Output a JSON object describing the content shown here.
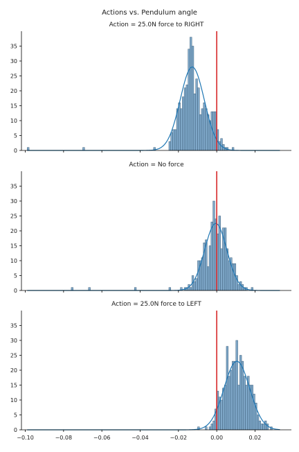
{
  "figure": {
    "suptitle": "Actions vs. Pendulum angle"
  },
  "colors": {
    "bar_fill": "#7fa8c9",
    "bar_edge": "#3d5f7a",
    "kde_line": "#1f77b4",
    "zero_line": "#d62728",
    "axis": "#000000"
  },
  "chart_data": [
    {
      "type": "bar",
      "title": "Action = 25.0N force to RIGHT",
      "xlabel": "",
      "ylabel": "",
      "xlim": [
        -0.102,
        0.039
      ],
      "ylim": [
        0,
        40
      ],
      "yticks": [
        0,
        5,
        10,
        15,
        20,
        25,
        30,
        35
      ],
      "vline_x": 0.0,
      "bin_width": 0.001,
      "bins": [
        [
          -0.099,
          1
        ],
        [
          -0.07,
          1
        ],
        [
          -0.033,
          1
        ],
        [
          -0.025,
          3
        ],
        [
          -0.024,
          6
        ],
        [
          -0.023,
          7
        ],
        [
          -0.022,
          7
        ],
        [
          -0.021,
          14
        ],
        [
          -0.02,
          16
        ],
        [
          -0.019,
          14
        ],
        [
          -0.018,
          18
        ],
        [
          -0.017,
          21
        ],
        [
          -0.016,
          22
        ],
        [
          -0.015,
          34
        ],
        [
          -0.014,
          38
        ],
        [
          -0.013,
          35
        ],
        [
          -0.012,
          19
        ],
        [
          -0.011,
          24
        ],
        [
          -0.01,
          21
        ],
        [
          -0.009,
          12
        ],
        [
          -0.008,
          14
        ],
        [
          -0.007,
          16
        ],
        [
          -0.006,
          14
        ],
        [
          -0.005,
          12
        ],
        [
          -0.004,
          10
        ],
        [
          -0.003,
          13
        ],
        [
          -0.002,
          13
        ],
        [
          -0.001,
          13
        ],
        [
          0.0,
          7
        ],
        [
          0.001,
          3
        ],
        [
          0.002,
          4
        ],
        [
          0.003,
          2
        ],
        [
          0.004,
          1
        ],
        [
          0.005,
          1
        ],
        [
          0.008,
          1
        ]
      ],
      "kde": {
        "mean": -0.0128,
        "std": 0.0063,
        "peak": 28
      }
    },
    {
      "type": "bar",
      "title": "Action = No force",
      "xlabel": "",
      "ylabel": "",
      "xlim": [
        -0.102,
        0.039
      ],
      "ylim": [
        0,
        40
      ],
      "yticks": [
        0,
        5,
        10,
        15,
        20,
        25,
        30,
        35
      ],
      "vline_x": 0.0,
      "bin_width": 0.001,
      "bins": [
        [
          -0.076,
          1
        ],
        [
          -0.067,
          1
        ],
        [
          -0.043,
          1
        ],
        [
          -0.025,
          1
        ],
        [
          -0.019,
          1
        ],
        [
          -0.017,
          1
        ],
        [
          -0.016,
          1
        ],
        [
          -0.015,
          2
        ],
        [
          -0.014,
          1
        ],
        [
          -0.013,
          5
        ],
        [
          -0.012,
          3
        ],
        [
          -0.011,
          4
        ],
        [
          -0.01,
          10
        ],
        [
          -0.009,
          10
        ],
        [
          -0.008,
          11
        ],
        [
          -0.007,
          16
        ],
        [
          -0.006,
          17
        ],
        [
          -0.005,
          8
        ],
        [
          -0.004,
          15
        ],
        [
          -0.003,
          23
        ],
        [
          -0.002,
          30
        ],
        [
          -0.001,
          24
        ],
        [
          0.0,
          19
        ],
        [
          0.001,
          25
        ],
        [
          0.002,
          14
        ],
        [
          0.003,
          21
        ],
        [
          0.004,
          21
        ],
        [
          0.005,
          14
        ],
        [
          0.006,
          10
        ],
        [
          0.007,
          11
        ],
        [
          0.008,
          9
        ],
        [
          0.009,
          9
        ],
        [
          0.01,
          5
        ],
        [
          0.011,
          2
        ],
        [
          0.012,
          3
        ],
        [
          0.013,
          2
        ],
        [
          0.014,
          1
        ],
        [
          0.015,
          1
        ],
        [
          0.018,
          1
        ]
      ],
      "kde": {
        "mean": -0.0005,
        "std": 0.0058,
        "peak": 22.5
      }
    },
    {
      "type": "bar",
      "title": "Action = 25.0N force to LEFT",
      "xlabel": "",
      "ylabel": "",
      "xlim": [
        -0.102,
        0.039
      ],
      "ylim": [
        0,
        40
      ],
      "xticks": [
        -0.1,
        -0.08,
        -0.06,
        -0.04,
        -0.02,
        0.0,
        0.02
      ],
      "xticklabels": [
        "−0.10",
        "−0.08",
        "−0.06",
        "−0.04",
        "−0.02",
        "0.00",
        "0.02"
      ],
      "yticks": [
        0,
        5,
        10,
        15,
        20,
        25,
        30,
        35
      ],
      "vline_x": 0.0,
      "bin_width": 0.001,
      "bins": [
        [
          -0.01,
          1
        ],
        [
          -0.006,
          1
        ],
        [
          -0.004,
          1
        ],
        [
          -0.003,
          2
        ],
        [
          -0.002,
          3
        ],
        [
          -0.001,
          7
        ],
        [
          0.0,
          13
        ],
        [
          0.001,
          11
        ],
        [
          0.002,
          10
        ],
        [
          0.003,
          14
        ],
        [
          0.004,
          15
        ],
        [
          0.005,
          28
        ],
        [
          0.006,
          18
        ],
        [
          0.007,
          20
        ],
        [
          0.008,
          23
        ],
        [
          0.009,
          23
        ],
        [
          0.01,
          30
        ],
        [
          0.011,
          15
        ],
        [
          0.012,
          25
        ],
        [
          0.013,
          23
        ],
        [
          0.014,
          18
        ],
        [
          0.015,
          15
        ],
        [
          0.016,
          18
        ],
        [
          0.017,
          15
        ],
        [
          0.018,
          15
        ],
        [
          0.019,
          12
        ],
        [
          0.02,
          9
        ],
        [
          0.021,
          5
        ],
        [
          0.022,
          3
        ],
        [
          0.023,
          2
        ],
        [
          0.024,
          2
        ],
        [
          0.025,
          3
        ],
        [
          0.026,
          2
        ],
        [
          0.028,
          1
        ]
      ],
      "kde": {
        "mean": 0.0105,
        "std": 0.0067,
        "peak": 23
      }
    }
  ]
}
